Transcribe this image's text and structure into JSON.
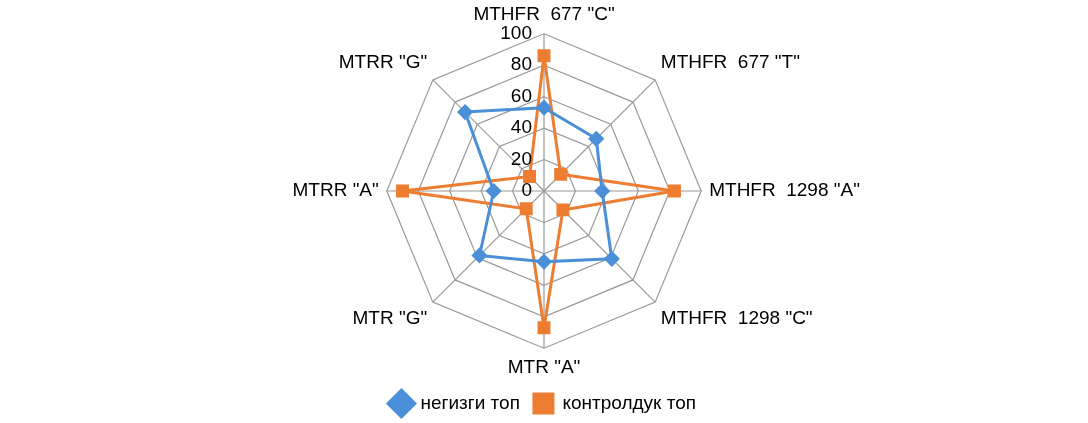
{
  "chart_data": {
    "type": "radar",
    "categories": [
      "MTHFR  677 \"C\"",
      "MTHFR  677 \"T\"",
      "MTHFR  1298 \"A\"",
      "MTHFR  1298 \"C\"",
      "MTR \"A\"",
      "MTR \"G\"",
      "MTRR \"A\"",
      "MTRR \"G\""
    ],
    "series": [
      {
        "name": "негизги топ",
        "color": "#4a8fd8",
        "marker": "diamond",
        "values": [
          53,
          47,
          37,
          61,
          45,
          58,
          32,
          71
        ]
      },
      {
        "name": "контролдук топ",
        "color": "#ed7d31",
        "marker": "square",
        "values": [
          86,
          15,
          83,
          17,
          87,
          16,
          90,
          13
        ]
      }
    ],
    "ylim": [
      0,
      100
    ],
    "yticks": [
      0,
      20,
      40,
      60,
      80,
      100
    ],
    "grid": true,
    "legend": "bottom"
  }
}
